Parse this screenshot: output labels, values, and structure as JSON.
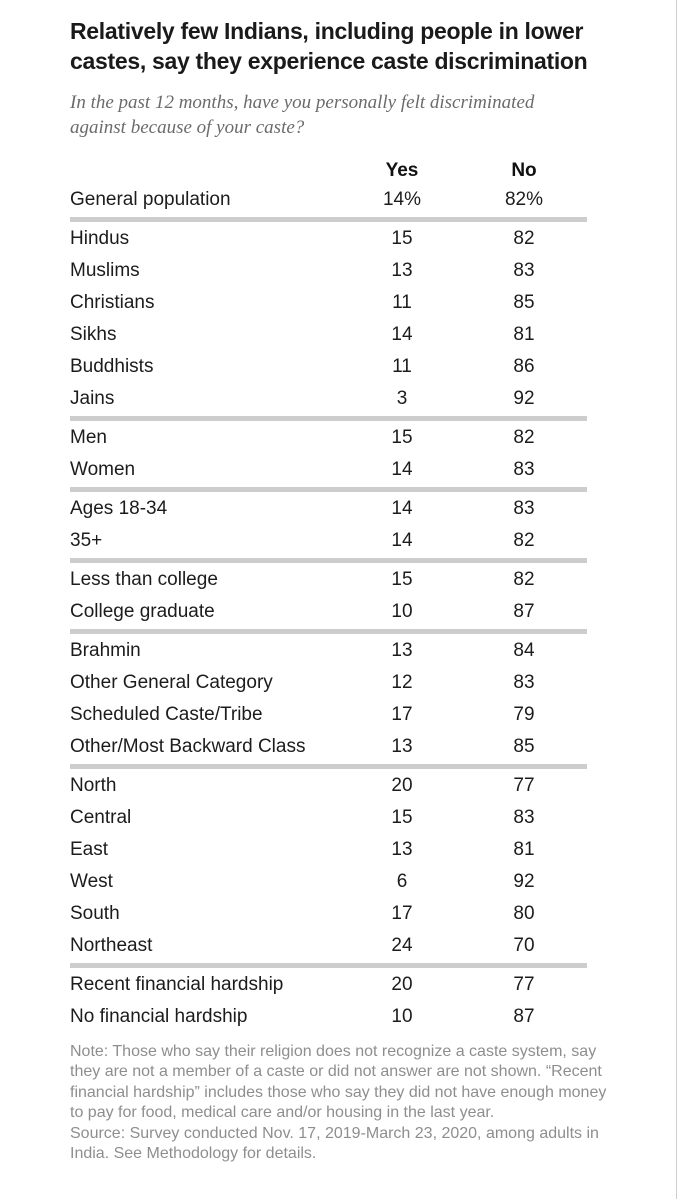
{
  "title": "Relatively few Indians, including people in lower castes, say they experience caste discrimination",
  "subtitle": "In the past 12 months, have you personally felt discriminated against because of your caste?",
  "chart_data": {
    "type": "table",
    "columns": [
      "Yes",
      "No"
    ],
    "groups": [
      {
        "rows": [
          {
            "label": "General population",
            "yes": "14%",
            "no": "82%"
          }
        ]
      },
      {
        "rows": [
          {
            "label": "Hindus",
            "yes": "15",
            "no": "82"
          },
          {
            "label": "Muslims",
            "yes": "13",
            "no": "83"
          },
          {
            "label": "Christians",
            "yes": "11",
            "no": "85"
          },
          {
            "label": "Sikhs",
            "yes": "14",
            "no": "81"
          },
          {
            "label": "Buddhists",
            "yes": "11",
            "no": "86"
          },
          {
            "label": "Jains",
            "yes": "3",
            "no": "92"
          }
        ]
      },
      {
        "rows": [
          {
            "label": "Men",
            "yes": "15",
            "no": "82"
          },
          {
            "label": "Women",
            "yes": "14",
            "no": "83"
          }
        ]
      },
      {
        "rows": [
          {
            "label": "Ages 18-34",
            "yes": "14",
            "no": "83"
          },
          {
            "label": "35+",
            "yes": "14",
            "no": "82"
          }
        ]
      },
      {
        "rows": [
          {
            "label": "Less than college",
            "yes": "15",
            "no": "82"
          },
          {
            "label": "College graduate",
            "yes": "10",
            "no": "87"
          }
        ]
      },
      {
        "rows": [
          {
            "label": "Brahmin",
            "yes": "13",
            "no": "84"
          },
          {
            "label": "Other General Category",
            "yes": "12",
            "no": "83"
          },
          {
            "label": "Scheduled Caste/Tribe",
            "yes": "17",
            "no": "79"
          },
          {
            "label": "Other/Most Backward Class",
            "yes": "13",
            "no": "85"
          }
        ]
      },
      {
        "rows": [
          {
            "label": "North",
            "yes": "20",
            "no": "77"
          },
          {
            "label": "Central",
            "yes": "15",
            "no": "83"
          },
          {
            "label": "East",
            "yes": "13",
            "no": "81"
          },
          {
            "label": "West",
            "yes": "6",
            "no": "92"
          },
          {
            "label": "South",
            "yes": "17",
            "no": "80"
          },
          {
            "label": "Northeast",
            "yes": "24",
            "no": "70"
          }
        ]
      },
      {
        "rows": [
          {
            "label": "Recent financial hardship",
            "yes": "20",
            "no": "77"
          },
          {
            "label": "No financial hardship",
            "yes": "10",
            "no": "87"
          }
        ]
      }
    ]
  },
  "note": "Note: Those who say their religion does not recognize a caste system, say they are not a member of a caste or did not answer are not shown. “Recent financial hardship” includes those who say they did not have enough money to pay for food, medical care and/or housing in the last year.",
  "source": "Source: Survey conducted Nov. 17, 2019-March 23, 2020, among adults in India. See Methodology for details.",
  "colors": {
    "divider": "#cdcdcd",
    "title_text": "#1a1a1a",
    "body_text": "#1c1c1c",
    "subtitle_text": "#6b6b6b",
    "note_text": "#8e8e8e"
  }
}
